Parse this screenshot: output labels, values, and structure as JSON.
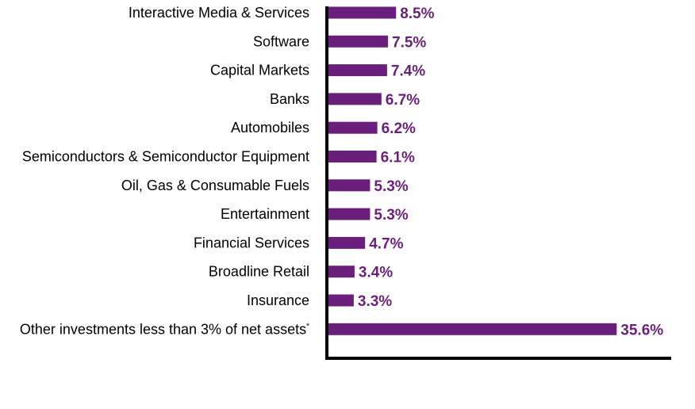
{
  "chart_data": {
    "type": "bar",
    "orientation": "horizontal",
    "categories": [
      "Interactive Media & Services",
      "Software",
      "Capital Markets",
      "Banks",
      "Automobiles",
      "Semiconductors & Semiconductor Equipment",
      "Oil, Gas & Consumable Fuels",
      "Entertainment",
      "Financial Services",
      "Broadline Retail",
      "Insurance",
      "Other investments less than 3% of net assets"
    ],
    "category_superscripts": [
      "",
      "",
      "",
      "",
      "",
      "",
      "",
      "",
      "",
      "",
      "",
      "*"
    ],
    "values": [
      8.5,
      7.5,
      7.4,
      6.7,
      6.2,
      6.1,
      5.3,
      5.3,
      4.7,
      3.4,
      3.3,
      35.6
    ],
    "value_labels": [
      "8.5%",
      "7.5%",
      "7.4%",
      "6.7%",
      "6.2%",
      "6.1%",
      "5.3%",
      "5.3%",
      "4.7%",
      "3.4%",
      "3.3%",
      "35.6%"
    ],
    "xlim": [
      0,
      42
    ],
    "grid": false,
    "title": "",
    "xlabel": "",
    "ylabel": ""
  },
  "colors": {
    "bar": "#6b1f7c",
    "value_label": "#6b1f7c",
    "axis": "#000000",
    "category_label": "#000000"
  }
}
